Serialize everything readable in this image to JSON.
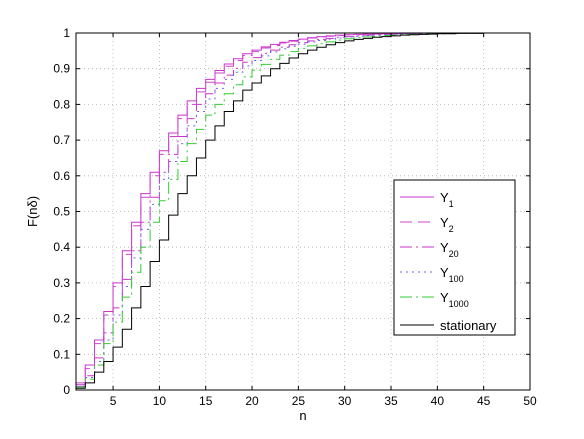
{
  "chart_data": {
    "type": "line",
    "step": true,
    "xlabel": "n",
    "ylabel": "F(nδ)",
    "xlim": [
      1,
      50
    ],
    "ylim": [
      0,
      1
    ],
    "xticks": [
      5,
      10,
      15,
      20,
      25,
      30,
      35,
      40,
      45,
      50
    ],
    "yticks": [
      0,
      0.1,
      0.2,
      0.3,
      0.4,
      0.5,
      0.6,
      0.7,
      0.8,
      0.9,
      1
    ],
    "grid": true,
    "legend_position": "right",
    "x": [
      1,
      2,
      3,
      4,
      5,
      6,
      7,
      8,
      9,
      10,
      11,
      12,
      13,
      14,
      15,
      16,
      17,
      18,
      19,
      20,
      21,
      22,
      23,
      24,
      25,
      26,
      27,
      28,
      29,
      30,
      31,
      32,
      33,
      34,
      35,
      36,
      37,
      38,
      39,
      40,
      41,
      42,
      43,
      44,
      45,
      46,
      47,
      48,
      49,
      50
    ],
    "series": [
      {
        "base": "Y",
        "sub": "1",
        "color": "#cc33cc",
        "dash": "solid",
        "values": [
          0.02,
          0.07,
          0.14,
          0.22,
          0.3,
          0.39,
          0.47,
          0.55,
          0.61,
          0.67,
          0.72,
          0.77,
          0.81,
          0.845,
          0.87,
          0.895,
          0.913,
          0.928,
          0.942,
          0.952,
          0.961,
          0.968,
          0.974,
          0.979,
          0.983,
          0.987,
          0.99,
          0.992,
          0.994,
          0.995,
          0.996,
          0.997,
          0.998,
          0.998,
          0.999,
          0.999,
          0.999,
          1,
          1,
          1,
          1,
          1,
          1,
          1,
          1,
          1,
          1,
          1,
          1,
          1
        ]
      },
      {
        "base": "Y",
        "sub": "2",
        "color": "#cc44cc",
        "dash": "12,6",
        "values": [
          0.015,
          0.06,
          0.13,
          0.21,
          0.29,
          0.38,
          0.46,
          0.54,
          0.6,
          0.66,
          0.71,
          0.76,
          0.8,
          0.835,
          0.862,
          0.888,
          0.907,
          0.923,
          0.937,
          0.948,
          0.958,
          0.965,
          0.972,
          0.977,
          0.982,
          0.986,
          0.989,
          0.991,
          0.993,
          0.995,
          0.996,
          0.997,
          0.997,
          0.998,
          0.998,
          0.999,
          0.999,
          0.999,
          1,
          1,
          1,
          1,
          1,
          1,
          1,
          1,
          1,
          1,
          1,
          1
        ]
      },
      {
        "base": "Y",
        "sub": "20",
        "color": "#cc33cc",
        "dash": "12,4,2,4",
        "values": [
          0.01,
          0.04,
          0.09,
          0.16,
          0.23,
          0.31,
          0.39,
          0.47,
          0.54,
          0.61,
          0.66,
          0.71,
          0.76,
          0.8,
          0.83,
          0.86,
          0.882,
          0.901,
          0.918,
          0.931,
          0.943,
          0.952,
          0.96,
          0.967,
          0.973,
          0.978,
          0.982,
          0.985,
          0.988,
          0.99,
          0.992,
          0.994,
          0.995,
          0.996,
          0.997,
          0.998,
          0.998,
          0.999,
          0.999,
          0.999,
          1,
          1,
          1,
          1,
          1,
          1,
          1,
          1,
          1,
          1
        ]
      },
      {
        "base": "Y",
        "sub": "100",
        "color": "#6666ee",
        "dash": "2,4",
        "values": [
          0.01,
          0.035,
          0.08,
          0.14,
          0.21,
          0.29,
          0.37,
          0.45,
          0.52,
          0.59,
          0.64,
          0.69,
          0.74,
          0.78,
          0.815,
          0.845,
          0.87,
          0.89,
          0.908,
          0.923,
          0.936,
          0.947,
          0.956,
          0.963,
          0.969,
          0.975,
          0.979,
          0.983,
          0.986,
          0.989,
          0.991,
          0.993,
          0.994,
          0.995,
          0.996,
          0.997,
          0.998,
          0.998,
          0.999,
          0.999,
          1,
          1,
          1,
          1,
          1,
          1,
          1,
          1,
          1,
          1
        ]
      },
      {
        "base": "Y",
        "sub": "1000",
        "color": "#33cc33",
        "dash": "12,4,2,4",
        "values": [
          0.008,
          0.03,
          0.07,
          0.13,
          0.19,
          0.26,
          0.33,
          0.4,
          0.47,
          0.53,
          0.59,
          0.64,
          0.69,
          0.73,
          0.77,
          0.8,
          0.83,
          0.855,
          0.877,
          0.896,
          0.912,
          0.926,
          0.938,
          0.948,
          0.957,
          0.964,
          0.97,
          0.975,
          0.98,
          0.984,
          0.987,
          0.989,
          0.991,
          0.993,
          0.994,
          0.995,
          0.996,
          0.997,
          0.998,
          0.998,
          0.999,
          0.999,
          1,
          1,
          1,
          1,
          1,
          1,
          1,
          1
        ]
      },
      {
        "name": "stationary",
        "color": "#000000",
        "dash": "solid",
        "values": [
          0.005,
          0.02,
          0.05,
          0.08,
          0.12,
          0.17,
          0.23,
          0.29,
          0.36,
          0.42,
          0.49,
          0.55,
          0.6,
          0.65,
          0.7,
          0.74,
          0.78,
          0.81,
          0.84,
          0.86,
          0.88,
          0.9,
          0.915,
          0.93,
          0.942,
          0.952,
          0.96,
          0.967,
          0.973,
          0.978,
          0.982,
          0.985,
          0.988,
          0.99,
          0.992,
          0.994,
          0.995,
          0.996,
          0.997,
          0.998,
          0.998,
          0.999,
          0.999,
          0.999,
          1,
          1,
          1,
          1,
          1,
          1
        ]
      }
    ]
  }
}
